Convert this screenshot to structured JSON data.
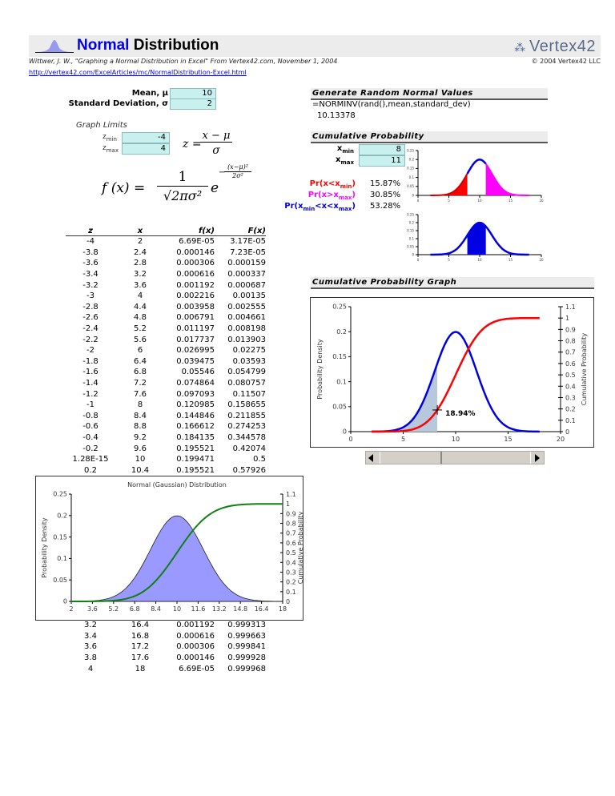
{
  "header": {
    "title_part1": "Normal",
    "title_part2": " Distribution",
    "logo_text": "Vertex42",
    "citation": "Wittwer, J. W., \"Graphing a Normal Distribution in Excel\" From Vertex42.com, November 1, 2004",
    "copyright": "© 2004 Vertex42 LLC",
    "link": "http://vertex42.com/ExcelArticles/mc/NormalDistribution-Excel.html"
  },
  "inputs": {
    "mean_label": "Mean, μ",
    "mean_value": "10",
    "sd_label": "Standard Deviation, σ",
    "sd_value": "2",
    "graph_limits_label": "Graph Limits",
    "zmin_label": "z",
    "zmin_sub": "min",
    "zmin_value": "-4",
    "zmax_label": "z",
    "zmax_sub": "max",
    "zmax_value": "4"
  },
  "formulas": {
    "z_formula_lhs": "z =",
    "z_formula_num": "x − μ",
    "z_formula_den": "σ",
    "f_lhs": "f (x) =",
    "f_num": "1",
    "f_den": "√2πσ²",
    "f_e": "e",
    "f_exp_num": "(x−μ)²",
    "f_exp_den": "2σ²",
    "f_exp_sign": "−"
  },
  "random": {
    "heading": "Generate Random Normal Values",
    "formula": "=NORMINV(rand(),mean,standard_dev)",
    "value": "10.13378"
  },
  "cumulative": {
    "heading": "Cumulative Probability",
    "xmin_label": "x",
    "xmin_sub": "min",
    "xmin_value": "8",
    "xmax_label": "x",
    "xmax_sub": "max",
    "xmax_value": "11",
    "pr_lt_label": "Pr(x<x",
    "pr_lt_sub": "min",
    "pr_lt_value": "15.87%",
    "pr_gt_label": "Pr(x>x",
    "pr_gt_sub": "max",
    "pr_gt_value": "30.85%",
    "pr_between_label": "Pr(x",
    "pr_between_sub1": "min",
    "pr_between_mid": "<x<x",
    "pr_between_sub2": "max",
    "pr_between_value": "53.28%",
    "colors": {
      "lt": "#ff0000",
      "gt": "#ff00ff",
      "between": "#0000e0"
    }
  },
  "cum_graph": {
    "heading": "Cumulative Probability Graph",
    "annotation": "18.94%"
  },
  "table": {
    "headers": [
      "z",
      "x",
      "f(x)",
      "F(x)"
    ],
    "rows": [
      [
        "-4",
        "2",
        "6.69E-05",
        "3.17E-05"
      ],
      [
        "-3.8",
        "2.4",
        "0.000146",
        "7.23E-05"
      ],
      [
        "-3.6",
        "2.8",
        "0.000306",
        "0.000159"
      ],
      [
        "-3.4",
        "3.2",
        "0.000616",
        "0.000337"
      ],
      [
        "-3.2",
        "3.6",
        "0.001192",
        "0.000687"
      ],
      [
        "-3",
        "4",
        "0.002216",
        "0.00135"
      ],
      [
        "-2.8",
        "4.4",
        "0.003958",
        "0.002555"
      ],
      [
        "-2.6",
        "4.8",
        "0.006791",
        "0.004661"
      ],
      [
        "-2.4",
        "5.2",
        "0.011197",
        "0.008198"
      ],
      [
        "-2.2",
        "5.6",
        "0.017737",
        "0.013903"
      ],
      [
        "-2",
        "6",
        "0.026995",
        "0.02275"
      ],
      [
        "-1.8",
        "6.4",
        "0.039475",
        "0.03593"
      ],
      [
        "-1.6",
        "6.8",
        "0.05546",
        "0.054799"
      ],
      [
        "-1.4",
        "7.2",
        "0.074864",
        "0.080757"
      ],
      [
        "-1.2",
        "7.6",
        "0.097093",
        "0.11507"
      ],
      [
        "-1",
        "8",
        "0.120985",
        "0.158655"
      ],
      [
        "-0.8",
        "8.4",
        "0.144846",
        "0.211855"
      ],
      [
        "-0.6",
        "8.8",
        "0.166612",
        "0.274253"
      ],
      [
        "-0.4",
        "9.2",
        "0.184135",
        "0.344578"
      ],
      [
        "-0.2",
        "9.6",
        "0.195521",
        "0.42074"
      ],
      [
        "1.28E-15",
        "10",
        "0.199471",
        "0.5"
      ],
      [
        "0.2",
        "10.4",
        "0.195521",
        "0.57926"
      ]
    ],
    "rows_bottom": [
      [
        "3.2",
        "16.4",
        "0.001192",
        "0.999313"
      ],
      [
        "3.4",
        "16.8",
        "0.000616",
        "0.999663"
      ],
      [
        "3.6",
        "17.2",
        "0.000306",
        "0.999841"
      ],
      [
        "3.8",
        "17.6",
        "0.000146",
        "0.999928"
      ],
      [
        "4",
        "18",
        "6.69E-05",
        "0.999968"
      ]
    ]
  },
  "chart_data": [
    {
      "id": "gaussian",
      "type": "area",
      "title": "Normal (Gaussian) Distribution",
      "ylabel": "Probability Density",
      "y2label": "Cumulative Probability",
      "xlim": [
        2,
        18
      ],
      "ylim": [
        0,
        0.25
      ],
      "y2lim": [
        0,
        1.1
      ],
      "xticks": [
        "2",
        "3.6",
        "5.2",
        "6.8",
        "8.4",
        "10",
        "11.6",
        "13.2",
        "14.8",
        "16.4",
        "18"
      ],
      "yticks": [
        "0",
        "0.05",
        "0.1",
        "0.15",
        "0.2",
        "0.25"
      ],
      "y2ticks": [
        "0",
        "0.1",
        "0.2",
        "0.3",
        "0.4",
        "0.5",
        "0.6",
        "0.7",
        "0.8",
        "0.9",
        "1",
        "1.1"
      ],
      "mean": 10,
      "sd": 2,
      "series": [
        {
          "name": "f(x)",
          "color": "#9999ff"
        },
        {
          "name": "F(x)",
          "color": "#108010"
        }
      ]
    },
    {
      "id": "cumprob",
      "type": "line",
      "ylabel": "Probability Density",
      "y2label": "Cumulative Probability",
      "xlim": [
        0,
        20
      ],
      "ylim": [
        0,
        0.25
      ],
      "y2lim": [
        0,
        1.1
      ],
      "xticks": [
        "0",
        "5",
        "10",
        "15",
        "20"
      ],
      "yticks": [
        "0",
        "0.05",
        "0.1",
        "0.15",
        "0.2",
        "0.25"
      ],
      "y2ticks": [
        "0",
        "0.1",
        "0.2",
        "0.3",
        "0.4",
        "0.5",
        "0.6",
        "0.7",
        "0.8",
        "0.9",
        "1",
        "1.1"
      ],
      "mean": 10,
      "sd": 2,
      "marker_x": 8.25,
      "marker_label": "18.94%",
      "series": [
        {
          "name": "f(x)",
          "color": "#0000e0"
        },
        {
          "name": "F(x)",
          "color": "#ff0000"
        }
      ]
    },
    {
      "id": "tails",
      "type": "area",
      "xlim": [
        0,
        20
      ],
      "ylim": [
        0,
        0.25
      ],
      "xticks": [
        "0",
        "5",
        "10",
        "15",
        "20"
      ],
      "yticks": [
        "0",
        "0.05",
        "0.1",
        "0.15",
        "0.2",
        "0.25"
      ],
      "mean": 10,
      "sd": 2,
      "xmin": 8,
      "xmax": 11
    },
    {
      "id": "between",
      "type": "area",
      "xlim": [
        0,
        20
      ],
      "ylim": [
        0,
        0.25
      ],
      "xticks": [
        "0",
        "5",
        "10",
        "15",
        "20"
      ],
      "yticks": [
        "0",
        "0.05",
        "0.1",
        "0.15",
        "0.2",
        "0.25"
      ],
      "mean": 10,
      "sd": 2,
      "xmin": 8,
      "xmax": 11
    }
  ]
}
